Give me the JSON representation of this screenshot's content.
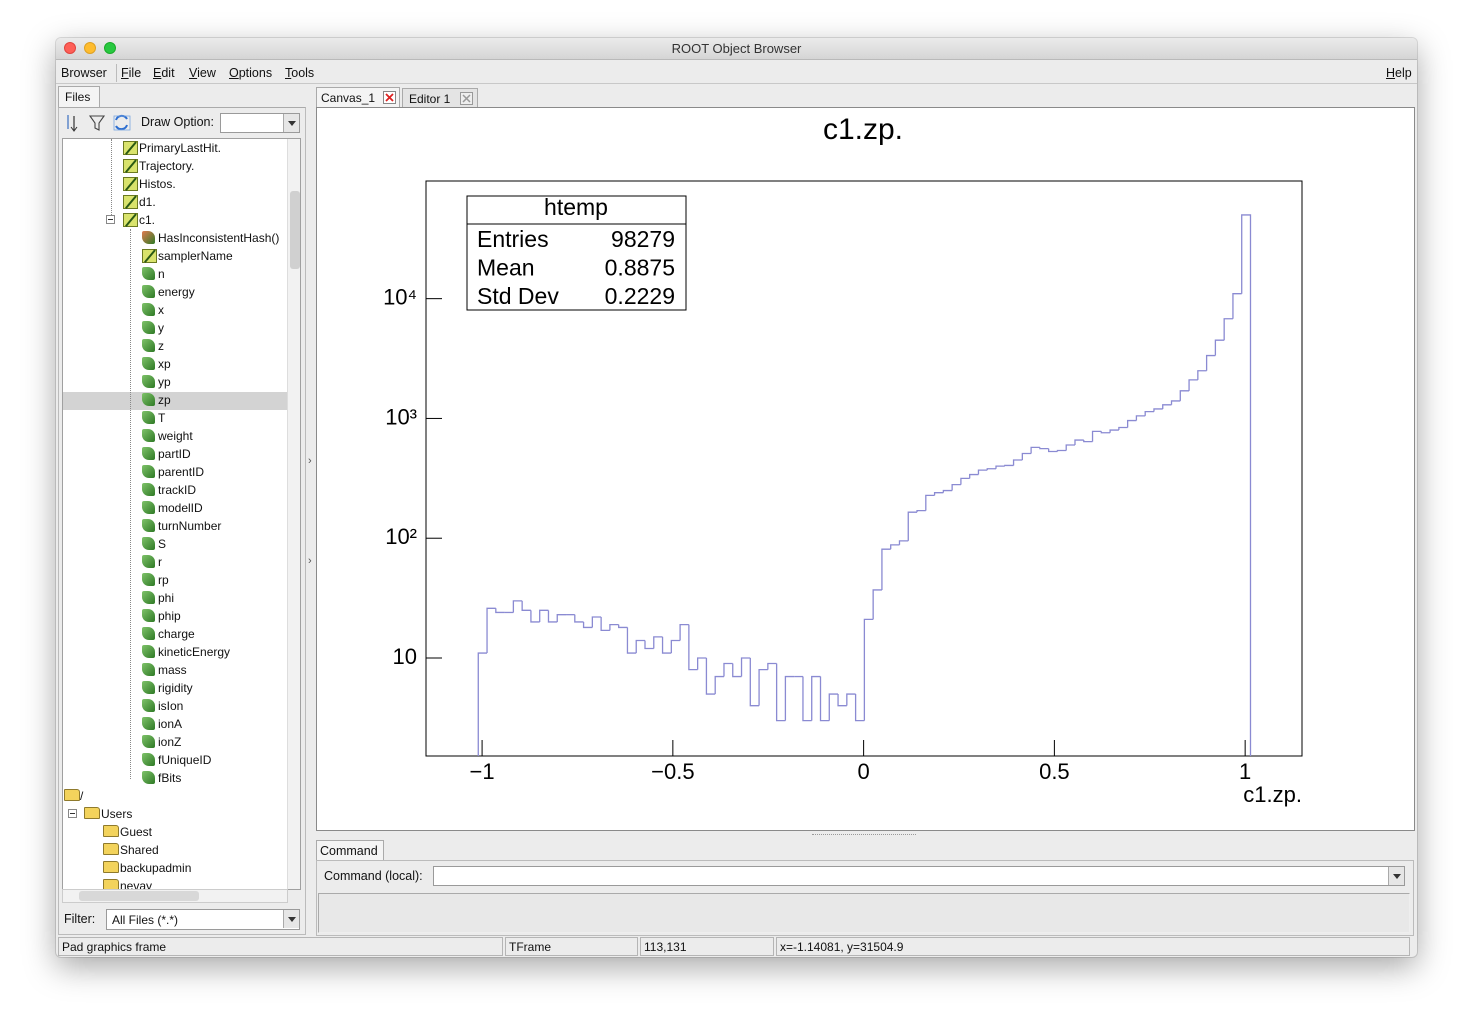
{
  "window": {
    "title": "ROOT Object Browser"
  },
  "menu": {
    "items": [
      "Browser",
      "File",
      "Edit",
      "View",
      "Options",
      "Tools"
    ],
    "help": "Help"
  },
  "browser": {
    "tab": "Files",
    "draw_option_label": "Draw Option:",
    "tree": {
      "branches": [
        "PrimaryLastHit.",
        "Trajectory.",
        "Histos.",
        "d1.",
        "c1."
      ],
      "leaves": [
        "HasInconsistentHash()",
        "samplerName",
        "n",
        "energy",
        "x",
        "y",
        "z",
        "xp",
        "yp",
        "zp",
        "T",
        "weight",
        "partID",
        "parentID",
        "trackID",
        "modelID",
        "turnNumber",
        "S",
        "r",
        "rp",
        "phi",
        "phip",
        "charge",
        "kineticEnergy",
        "mass",
        "rigidity",
        "isIon",
        "ionA",
        "ionZ",
        "fUniqueID",
        "fBits"
      ],
      "root": "/",
      "users": "Users",
      "user_folders": [
        "Guest",
        "Shared",
        "backupadmin",
        "nevay"
      ]
    },
    "filter_label": "Filter:",
    "filter_value": "All Files (*.*)"
  },
  "tabs": [
    "Canvas_1",
    "Editor 1"
  ],
  "chart_data": {
    "type": "histogram",
    "title": "c1.zp.",
    "x_label": "c1.zp.",
    "color": "#8a8ad2",
    "log_y": true,
    "xlim": [
      -1.147,
      1.149
    ],
    "ylim": [
      1.52,
      96000
    ],
    "xticks": [
      {
        "value": -1,
        "label": "−1"
      },
      {
        "value": -0.5,
        "label": "−0.5"
      },
      0,
      0.5,
      1
    ],
    "yticks": [
      10,
      {
        "value": 100,
        "label": "10²"
      },
      {
        "value": 1000,
        "label": "10³"
      },
      {
        "value": 10000,
        "label": "10⁴"
      }
    ],
    "bins": [
      -1.01,
      -0.987,
      -0.964,
      -0.941,
      -0.918,
      -0.895,
      -0.872,
      -0.849,
      -0.826,
      -0.803,
      -0.78,
      -0.757,
      -0.734,
      -0.711,
      -0.688,
      -0.665,
      -0.642,
      -0.619,
      -0.596,
      -0.573,
      -0.55,
      -0.527,
      -0.504,
      -0.481,
      -0.458,
      -0.435,
      -0.412,
      -0.389,
      -0.366,
      -0.343,
      -0.32,
      -0.297,
      -0.274,
      -0.251,
      -0.228,
      -0.205,
      -0.182,
      -0.159,
      -0.136,
      -0.113,
      -0.09,
      -0.067,
      -0.044,
      -0.021,
      0.002,
      0.025,
      0.048,
      0.071,
      0.094,
      0.117,
      0.14,
      0.163,
      0.186,
      0.209,
      0.232,
      0.255,
      0.278,
      0.301,
      0.324,
      0.347,
      0.37,
      0.393,
      0.416,
      0.439,
      0.462,
      0.485,
      0.508,
      0.531,
      0.554,
      0.577,
      0.6,
      0.623,
      0.646,
      0.669,
      0.692,
      0.715,
      0.738,
      0.761,
      0.784,
      0.807,
      0.83,
      0.853,
      0.876,
      0.899,
      0.922,
      0.945,
      0.968,
      0.991,
      1.014
    ],
    "values": [
      11,
      26,
      24,
      24,
      30,
      25,
      20,
      25,
      20,
      23,
      23,
      20,
      18,
      22,
      17,
      19,
      18,
      11,
      14,
      12,
      15,
      11,
      14,
      19,
      8,
      10,
      5,
      7,
      9,
      7,
      10,
      4,
      8,
      9,
      3,
      7,
      7,
      3,
      7,
      3,
      5,
      4,
      5,
      3,
      21,
      37,
      81,
      88,
      95,
      165,
      170,
      228,
      240,
      250,
      280,
      316,
      340,
      370,
      380,
      400,
      405,
      450,
      510,
      573,
      560,
      530,
      540,
      600,
      660,
      640,
      780,
      760,
      800,
      840,
      960,
      1050,
      1140,
      1200,
      1300,
      1400,
      1700,
      2100,
      2500,
      3350,
      4500,
      6800,
      11000,
      50000
    ],
    "stats": {
      "title": "htemp",
      "rows": [
        {
          "label": "Entries",
          "value": 98279
        },
        {
          "label": "Mean",
          "value": 0.8875
        },
        {
          "label": "Std Dev",
          "value": 0.2229
        }
      ]
    }
  },
  "command": {
    "tab": "Command",
    "label": "Command (local):"
  },
  "status_bar": [
    "Pad graphics frame",
    "TFrame",
    "113,131",
    "x=-1.14081, y=31504.9"
  ]
}
